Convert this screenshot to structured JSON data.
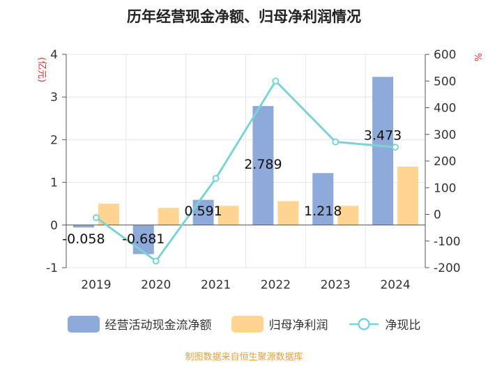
{
  "chart_data": {
    "type": "bar",
    "title": "历年经营现金净额、归母净利润情况",
    "categories": [
      "2019",
      "2020",
      "2021",
      "2022",
      "2023",
      "2024"
    ],
    "left_axis": {
      "label": "(亿元)",
      "ylim": [
        -1,
        4
      ],
      "ticks": [
        -1,
        0,
        1,
        2,
        3,
        4
      ]
    },
    "right_axis": {
      "label": "%",
      "ylim": [
        -200,
        600
      ],
      "ticks": [
        -200,
        -100,
        0,
        100,
        200,
        300,
        400,
        500,
        600
      ]
    },
    "series": [
      {
        "name": "经营活动现金流净额",
        "type": "bar",
        "axis": "left",
        "color": "#8eaadb",
        "values": [
          -0.058,
          -0.681,
          0.591,
          2.789,
          1.218,
          3.473
        ],
        "labels": [
          "-0.058",
          "-0.681",
          "0.591",
          "2.789",
          "1.218",
          "3.473"
        ]
      },
      {
        "name": "归母净利润",
        "type": "bar",
        "axis": "left",
        "color": "#ffd591",
        "values": [
          0.5,
          0.4,
          0.45,
          0.56,
          0.45,
          1.37
        ]
      },
      {
        "name": "净现比",
        "type": "line",
        "axis": "right",
        "color": "#7dd3d3",
        "values": [
          -12,
          -175,
          135,
          500,
          272,
          252
        ]
      }
    ]
  },
  "source": "制图数据来自恒生聚源数据库"
}
